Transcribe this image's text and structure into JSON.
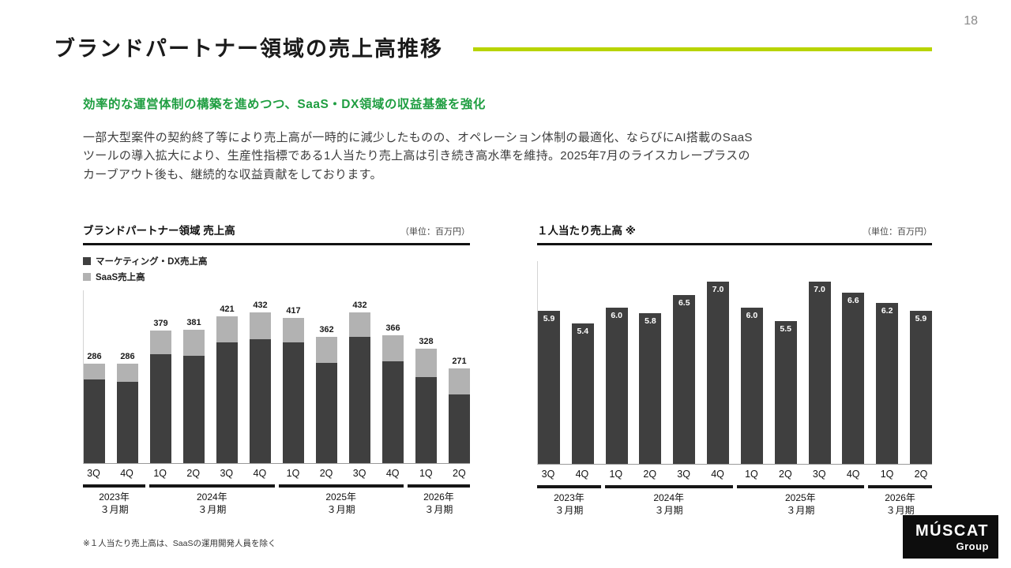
{
  "page": {
    "number": "18",
    "title": "ブランドパートナー領域の売上高推移",
    "subtitle": "効率的な運営体制の構築を進めつつ、SaaS・DX領域の収益基盤を強化",
    "body": "一部大型案件の契約終了等により売上高が一時的に減少したものの、オペレーション体制の最適化、ならびにAI搭載のSaaS\nツールの導入拡大により、生産性指標である1人当たり売上高は引き続き高水準を維持。2025年7月のライスカレープラスの\nカーブアウト後も、継続的な収益貢献をしております。",
    "footnote": "※１人当たり売上高は、SaaSの運用開発人員を除く",
    "logo": {
      "line1": "MÚSCAT",
      "line2": "Group"
    }
  },
  "colors": {
    "accent_line": "#b8d400",
    "green_text": "#1f9e41",
    "bar_dark": "#3f3f3f",
    "bar_gray": "#b2b2b2"
  },
  "chart_data": [
    {
      "type": "bar",
      "stacked": true,
      "title": "ブランドパートナー領域 売上高",
      "unit_label": "（単位：百万円）",
      "categories": [
        "3Q",
        "4Q",
        "1Q",
        "2Q",
        "3Q",
        "4Q",
        "1Q",
        "2Q",
        "3Q",
        "4Q",
        "1Q",
        "2Q"
      ],
      "year_groups": [
        {
          "year": "2023年",
          "period": "３月期",
          "span": 2
        },
        {
          "year": "2024年",
          "period": "３月期",
          "span": 4
        },
        {
          "year": "2025年",
          "period": "３月期",
          "span": 4
        },
        {
          "year": "2026年",
          "period": "３月期",
          "span": 2
        }
      ],
      "totals": [
        286,
        286,
        379,
        381,
        421,
        432,
        417,
        362,
        432,
        366,
        328,
        271
      ],
      "series": [
        {
          "name": "マーケティング・DX売上高",
          "color": "#3f3f3f",
          "values": [
            240,
            233,
            312,
            307,
            347,
            356,
            347,
            287,
            361,
            291,
            246,
            196
          ]
        },
        {
          "name": "SaaS売上高",
          "color": "#b2b2b2",
          "values": [
            46,
            53,
            67,
            74,
            74,
            76,
            70,
            75,
            71,
            75,
            82,
            75
          ]
        }
      ],
      "ylim": [
        0,
        450
      ],
      "legend_position": "top-left",
      "grid": false
    },
    {
      "type": "bar",
      "stacked": false,
      "title": "１人当たり売上高 ※",
      "unit_label": "（単位：百万円）",
      "categories": [
        "3Q",
        "4Q",
        "1Q",
        "2Q",
        "3Q",
        "4Q",
        "1Q",
        "2Q",
        "3Q",
        "4Q",
        "1Q",
        "2Q"
      ],
      "year_groups": [
        {
          "year": "2023年",
          "period": "３月期",
          "span": 2
        },
        {
          "year": "2024年",
          "period": "３月期",
          "span": 4
        },
        {
          "year": "2025年",
          "period": "３月期",
          "span": 4
        },
        {
          "year": "2026年",
          "period": "３月期",
          "span": 2
        }
      ],
      "values": [
        5.9,
        5.4,
        6.0,
        5.8,
        6.5,
        7.0,
        6.0,
        5.5,
        7.0,
        6.6,
        6.2,
        5.9
      ],
      "bar_color": "#3f3f3f",
      "ylim": [
        0,
        7.5
      ],
      "grid": false
    }
  ]
}
